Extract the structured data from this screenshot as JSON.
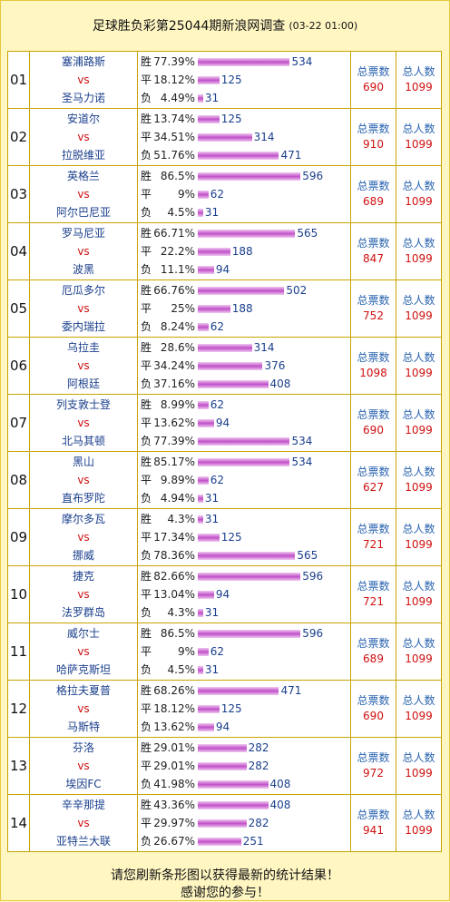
{
  "header": {
    "title": "足球胜负彩第25044期新浪网调查",
    "time": "(03-22 01:00)"
  },
  "labels": {
    "vs": "vs",
    "outcomes": [
      "胜",
      "平",
      "负"
    ],
    "total_votes": "总票数",
    "total_people": "总人数"
  },
  "matches": [
    {
      "no": "01",
      "home": "塞浦路斯",
      "away": "圣马力诺",
      "pct": [
        "77.39%",
        "18.12%",
        "4.49%"
      ],
      "counts": [
        534,
        125,
        31
      ],
      "votes": 690,
      "people": 1099
    },
    {
      "no": "02",
      "home": "安道尔",
      "away": "拉脱维亚",
      "pct": [
        "13.74%",
        "34.51%",
        "51.76%"
      ],
      "counts": [
        125,
        314,
        471
      ],
      "votes": 910,
      "people": 1099
    },
    {
      "no": "03",
      "home": "英格兰",
      "away": "阿尔巴尼亚",
      "pct": [
        "86.5%",
        "9%",
        "4.5%"
      ],
      "counts": [
        596,
        62,
        31
      ],
      "votes": 689,
      "people": 1099
    },
    {
      "no": "04",
      "home": "罗马尼亚",
      "away": "波黑",
      "pct": [
        "66.71%",
        "22.2%",
        "11.1%"
      ],
      "counts": [
        565,
        188,
        94
      ],
      "votes": 847,
      "people": 1099
    },
    {
      "no": "05",
      "home": "厄瓜多尔",
      "away": "委内瑞拉",
      "pct": [
        "66.76%",
        "25%",
        "8.24%"
      ],
      "counts": [
        502,
        188,
        62
      ],
      "votes": 752,
      "people": 1099
    },
    {
      "no": "06",
      "home": "乌拉圭",
      "away": "阿根廷",
      "pct": [
        "28.6%",
        "34.24%",
        "37.16%"
      ],
      "counts": [
        314,
        376,
        408
      ],
      "votes": 1098,
      "people": 1099
    },
    {
      "no": "07",
      "home": "列支敦士登",
      "away": "北马其顿",
      "pct": [
        "8.99%",
        "13.62%",
        "77.39%"
      ],
      "counts": [
        62,
        94,
        534
      ],
      "votes": 690,
      "people": 1099
    },
    {
      "no": "08",
      "home": "黑山",
      "away": "直布罗陀",
      "pct": [
        "85.17%",
        "9.89%",
        "4.94%"
      ],
      "counts": [
        534,
        62,
        31
      ],
      "votes": 627,
      "people": 1099
    },
    {
      "no": "09",
      "home": "摩尔多瓦",
      "away": "挪威",
      "pct": [
        "4.3%",
        "17.34%",
        "78.36%"
      ],
      "counts": [
        31,
        125,
        565
      ],
      "votes": 721,
      "people": 1099
    },
    {
      "no": "10",
      "home": "捷克",
      "away": "法罗群岛",
      "pct": [
        "82.66%",
        "13.04%",
        "4.3%"
      ],
      "counts": [
        596,
        94,
        31
      ],
      "votes": 721,
      "people": 1099
    },
    {
      "no": "11",
      "home": "威尔士",
      "away": "哈萨克斯坦",
      "pct": [
        "86.5%",
        "9%",
        "4.5%"
      ],
      "counts": [
        596,
        62,
        31
      ],
      "votes": 689,
      "people": 1099
    },
    {
      "no": "12",
      "home": "格拉夫夏普",
      "away": "马斯特",
      "pct": [
        "68.26%",
        "18.12%",
        "13.62%"
      ],
      "counts": [
        471,
        125,
        94
      ],
      "votes": 690,
      "people": 1099
    },
    {
      "no": "13",
      "home": "芬洛",
      "away": "埃因FC",
      "pct": [
        "29.01%",
        "29.01%",
        "41.98%"
      ],
      "counts": [
        282,
        282,
        408
      ],
      "votes": 972,
      "people": 1099
    },
    {
      "no": "14",
      "home": "辛辛那提",
      "away": "亚特兰大联",
      "pct": [
        "43.36%",
        "29.97%",
        "26.67%"
      ],
      "counts": [
        408,
        282,
        251
      ],
      "votes": 941,
      "people": 1099
    }
  ],
  "footer": {
    "line1": "请您刷新条形图以获得最新的统计结果！",
    "line2": "感谢您的参与！"
  }
}
